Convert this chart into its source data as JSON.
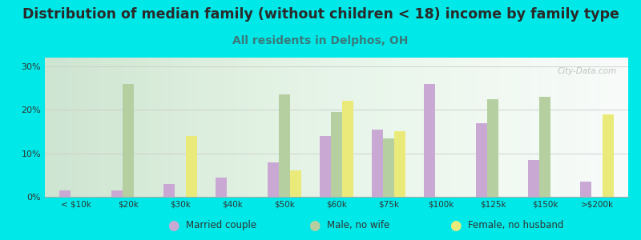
{
  "title": "Distribution of median family (without children < 18) income by family type",
  "subtitle": "All residents in Delphos, OH",
  "categories": [
    "< $10k",
    "$20k",
    "$30k",
    "$40k",
    "$50k",
    "$60k",
    "$75k",
    "$100k",
    "$125k",
    "$150k",
    ">$200k"
  ],
  "married_couple": [
    1.5,
    1.5,
    3.0,
    4.5,
    8.0,
    14.0,
    15.5,
    26.0,
    17.0,
    8.5,
    3.5
  ],
  "male_no_wife": [
    0.0,
    26.0,
    0.0,
    0.0,
    23.5,
    19.5,
    13.5,
    0.0,
    22.5,
    23.0,
    0.0
  ],
  "female_no_husband": [
    0.0,
    0.0,
    14.0,
    0.0,
    6.0,
    22.0,
    15.0,
    0.0,
    0.0,
    0.0,
    19.0
  ],
  "bar_colors": {
    "married_couple": "#c9a9d4",
    "male_no_wife": "#b5cfa0",
    "female_no_husband": "#eaea7a"
  },
  "background_color": "#00e8e8",
  "ylim": [
    0,
    32
  ],
  "yticks": [
    0,
    10,
    20,
    30
  ],
  "ytick_labels": [
    "0%",
    "10%",
    "20%",
    "30%"
  ],
  "title_fontsize": 12.5,
  "subtitle_fontsize": 10,
  "title_color": "#2a2a2a",
  "subtitle_color": "#3a7a7a",
  "bar_width": 0.22,
  "legend_labels": [
    "Married couple",
    "Male, no wife",
    "Female, no husband"
  ],
  "watermark": "City-Data.com"
}
